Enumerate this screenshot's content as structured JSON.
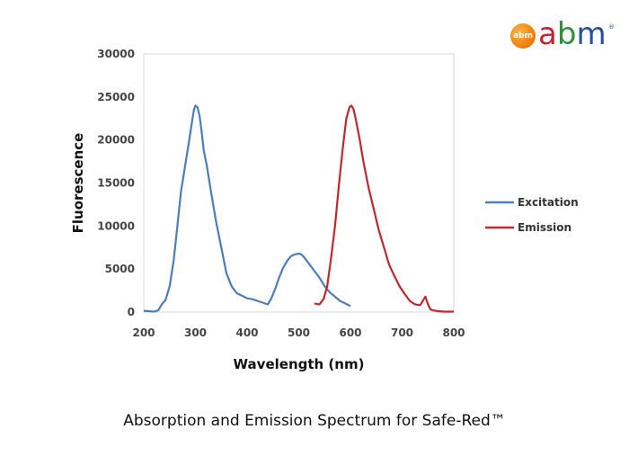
{
  "logo": {
    "badge_text": "abm",
    "word_a": "a",
    "word_b": "b",
    "word_m": "m",
    "registered": "®"
  },
  "caption": "Absorption and Emission Spectrum for Safe-Red™",
  "chart_data": {
    "type": "line",
    "title": "",
    "xlabel": "Wavelength (nm)",
    "ylabel": "Fluorescence",
    "xlim": [
      200,
      800
    ],
    "ylim": [
      0,
      30000
    ],
    "x_ticks": [
      200,
      300,
      400,
      500,
      600,
      700,
      800
    ],
    "y_ticks": [
      0,
      5000,
      10000,
      15000,
      20000,
      25000,
      30000
    ],
    "grid": false,
    "legend_position": "right",
    "series": [
      {
        "name": "Excitation",
        "color": "#4a7ebb",
        "x": [
          200,
          210,
          220,
          228,
          235,
          242,
          250,
          258,
          265,
          272,
          280,
          288,
          293,
          297,
          300,
          304,
          308,
          312,
          316,
          322,
          330,
          340,
          350,
          360,
          370,
          380,
          390,
          400,
          410,
          420,
          430,
          440,
          447,
          455,
          462,
          470,
          478,
          485,
          492,
          500,
          505,
          510,
          520,
          530,
          540,
          550,
          560,
          570,
          580,
          590,
          600
        ],
        "y": [
          150,
          100,
          50,
          200,
          900,
          1400,
          3000,
          6000,
          10000,
          14000,
          17000,
          20000,
          22000,
          23500,
          24000,
          23800,
          22800,
          21000,
          18800,
          17000,
          14000,
          10500,
          7500,
          4500,
          3000,
          2200,
          1900,
          1600,
          1500,
          1300,
          1100,
          900,
          1600,
          2800,
          4000,
          5200,
          6000,
          6500,
          6700,
          6800,
          6700,
          6400,
          5600,
          4800,
          4000,
          3000,
          2300,
          1800,
          1300,
          1000,
          700
        ]
      },
      {
        "name": "Emission",
        "color": "#c0282d",
        "x": [
          530,
          540,
          548,
          555,
          562,
          570,
          578,
          585,
          592,
          598,
          602,
          606,
          610,
          618,
          625,
          635,
          645,
          655,
          665,
          675,
          685,
          695,
          705,
          715,
          725,
          735,
          740,
          745,
          750,
          755,
          760,
          770,
          780,
          790,
          800
        ],
        "y": [
          1000,
          900,
          1500,
          3000,
          6000,
          10000,
          15000,
          19000,
          22500,
          23800,
          24000,
          23600,
          22500,
          20000,
          17500,
          14500,
          12000,
          9500,
          7500,
          5500,
          4200,
          3000,
          2100,
          1300,
          900,
          800,
          1300,
          1800,
          900,
          300,
          200,
          100,
          50,
          50,
          50
        ]
      }
    ]
  }
}
